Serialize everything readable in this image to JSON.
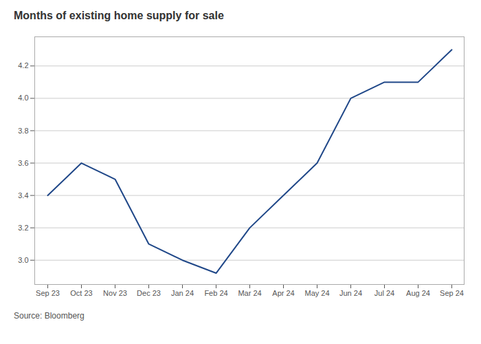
{
  "chart_data": {
    "type": "line",
    "title": "Months of existing home supply for sale",
    "source": "Source: Bloomberg",
    "categories": [
      "Sep 23",
      "Oct 23",
      "Nov 23",
      "Dec 23",
      "Jan 24",
      "Feb 24",
      "Mar 24",
      "Apr 24",
      "May 24",
      "Jun 24",
      "Jul 24",
      "Aug 24",
      "Sep 24"
    ],
    "values": [
      3.4,
      3.6,
      3.5,
      3.1,
      3.0,
      2.92,
      3.2,
      3.4,
      3.6,
      4.0,
      4.1,
      4.1,
      4.3
    ],
    "color": "#1f4788",
    "ylim": [
      2.85,
      4.38
    ],
    "yticks": [
      {
        "value": 3.0,
        "label": "3.0"
      },
      {
        "value": 3.2,
        "label": "3.2"
      },
      {
        "value": 3.4,
        "label": "3.4"
      },
      {
        "value": 3.6,
        "label": "3.6"
      },
      {
        "value": 3.8,
        "label": "3.8"
      },
      {
        "value": 4.0,
        "label": "4.0"
      },
      {
        "value": 4.2,
        "label": "4.2"
      }
    ],
    "grid": true
  }
}
